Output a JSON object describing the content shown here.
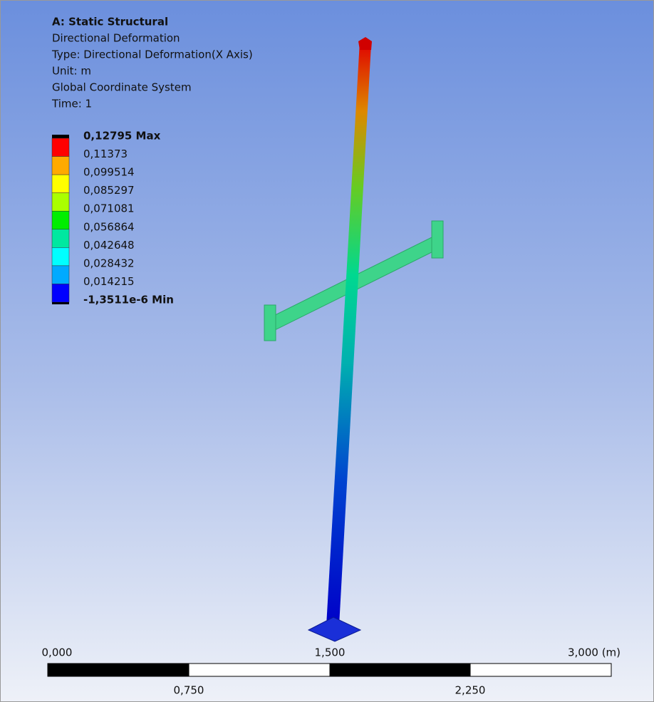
{
  "header": {
    "title": "A: Static Structural",
    "lines": [
      "Directional Deformation",
      "Type: Directional Deformation(X Axis)",
      "Unit: m",
      "Global Coordinate System",
      "Time: 1"
    ]
  },
  "legend": {
    "labels": [
      "0,12795 Max",
      "0,11373",
      "0,099514",
      "0,085297",
      "0,071081",
      "0,056864",
      "0,042648",
      "0,028432",
      "0,014215",
      "-1,3511e-6 Min"
    ],
    "colors": [
      "#ff0000",
      "#ffaa00",
      "#ffff00",
      "#aaff00",
      "#00ee00",
      "#00e8a0",
      "#00ffff",
      "#00aaff",
      "#0000ff"
    ]
  },
  "scale_bar": {
    "top_labels": [
      "0,000",
      "1,500",
      "3,000 (m)"
    ],
    "bottom_labels": [
      "0,750",
      "2,250"
    ]
  }
}
